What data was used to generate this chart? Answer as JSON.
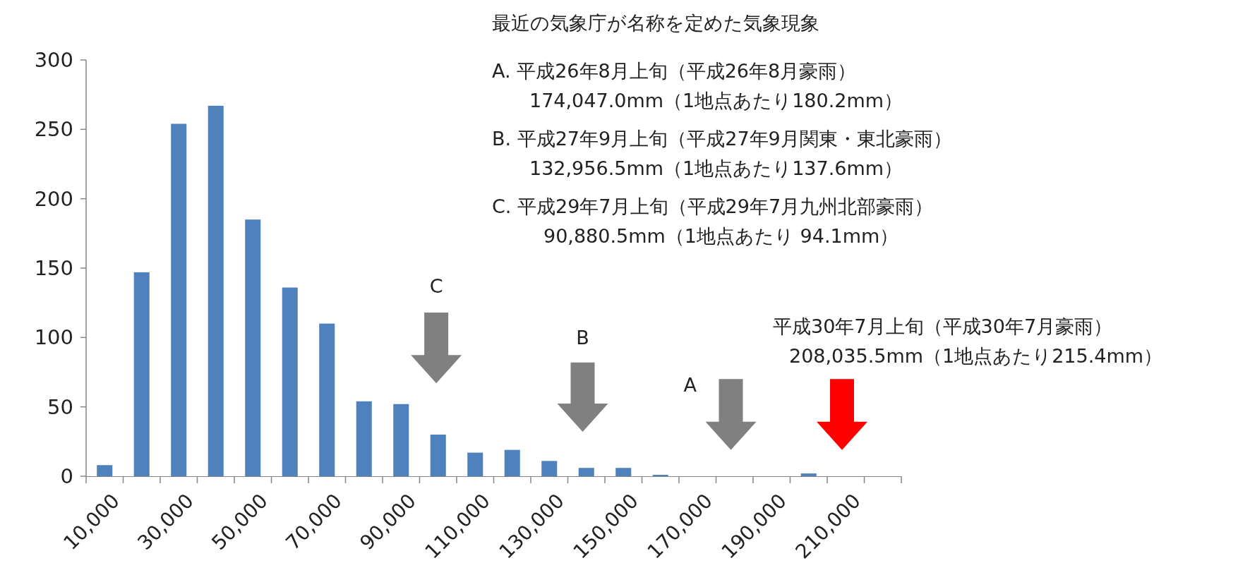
{
  "chart_data": {
    "type": "bar",
    "categories": [
      "10,000",
      null,
      "30,000",
      null,
      "50,000",
      null,
      "70,000",
      null,
      "90,000",
      null,
      "110,000",
      null,
      "130,000",
      null,
      "150,000",
      null,
      "170,000",
      null,
      "190,000",
      null,
      "210,000",
      null
    ],
    "values": [
      8,
      147,
      254,
      267,
      185,
      136,
      110,
      54,
      52,
      30,
      17,
      19,
      11,
      6,
      6,
      1,
      0,
      0,
      0,
      2,
      0,
      0
    ],
    "color": "#4f81bd",
    "ylim": [
      0,
      300
    ],
    "yticks": [
      0,
      50,
      100,
      150,
      200,
      250,
      300
    ],
    "annotations": [
      "最近の気象庁が名称を定めた気象現象",
      "A. 平成26年8月上旬（平成26年8月豪雨）",
      "174,047.0mm（1地点あたり180.2mm）",
      "B. 平成27年9月上旬（平成27年9月関東・東北豪雨）",
      "132,956.5mm（1地点あたり137.6mm）",
      "C. 平成29年7月上旬（平成29年7月九州北部豪雨）",
      "90,880.5mm（1地点あたり 94.1mm）",
      "C",
      "B",
      "A",
      "平成30年7月上旬（平成30年7月豪雨）",
      "208,035.5mm（1地点あたり215.4mm）"
    ]
  }
}
